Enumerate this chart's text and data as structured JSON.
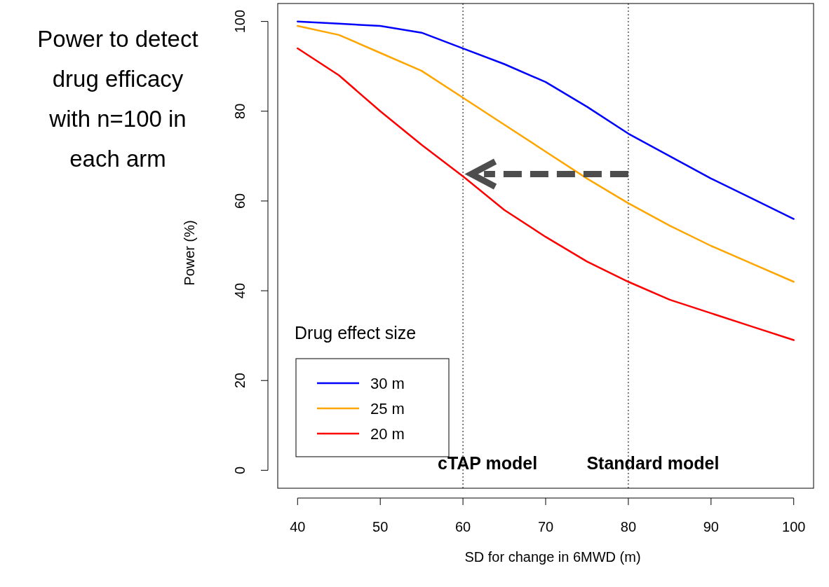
{
  "chart_data": {
    "type": "line",
    "xlabel": "SD for change in 6MWD (m)",
    "ylabel": "Power (%)",
    "legend_title": "Drug effect size",
    "annotations": [
      "Power to detect drug efficacy with n=100 in each arm"
    ],
    "x": [
      40,
      45,
      50,
      55,
      60,
      65,
      70,
      75,
      80,
      85,
      90,
      95,
      100
    ],
    "series": [
      {
        "name": "30 m",
        "color": "#0000ff",
        "values": [
          100,
          99.5,
          99,
          97.5,
          94,
          90.5,
          86.5,
          81,
          75,
          70,
          65,
          60.5,
          56
        ]
      },
      {
        "name": "25 m",
        "color": "#ffa500",
        "values": [
          99,
          97,
          93,
          89,
          83,
          77,
          71,
          65,
          59.5,
          54.5,
          50,
          46,
          42
        ]
      },
      {
        "name": "20 m",
        "color": "#ff0000",
        "values": [
          94,
          88,
          80,
          72.5,
          65.5,
          58,
          52,
          46.5,
          42,
          38,
          35,
          32,
          29
        ]
      }
    ],
    "xlim": [
      37.6,
      102.4
    ],
    "ylim": [
      -4,
      104
    ],
    "xticks": [
      40,
      50,
      60,
      70,
      80,
      90,
      100
    ],
    "yticks": [
      0,
      20,
      40,
      60,
      80,
      100
    ],
    "ref_lines": [
      {
        "axis": "x",
        "value": 60,
        "label": "cTAP model",
        "color": "#000000",
        "line_style": "dotted"
      },
      {
        "axis": "x",
        "value": 80,
        "label": "Standard model",
        "color": "#000000",
        "line_style": "dotted"
      }
    ],
    "grid": false,
    "legend": "bottom left",
    "marker": "none",
    "line_style": "solid"
  }
}
